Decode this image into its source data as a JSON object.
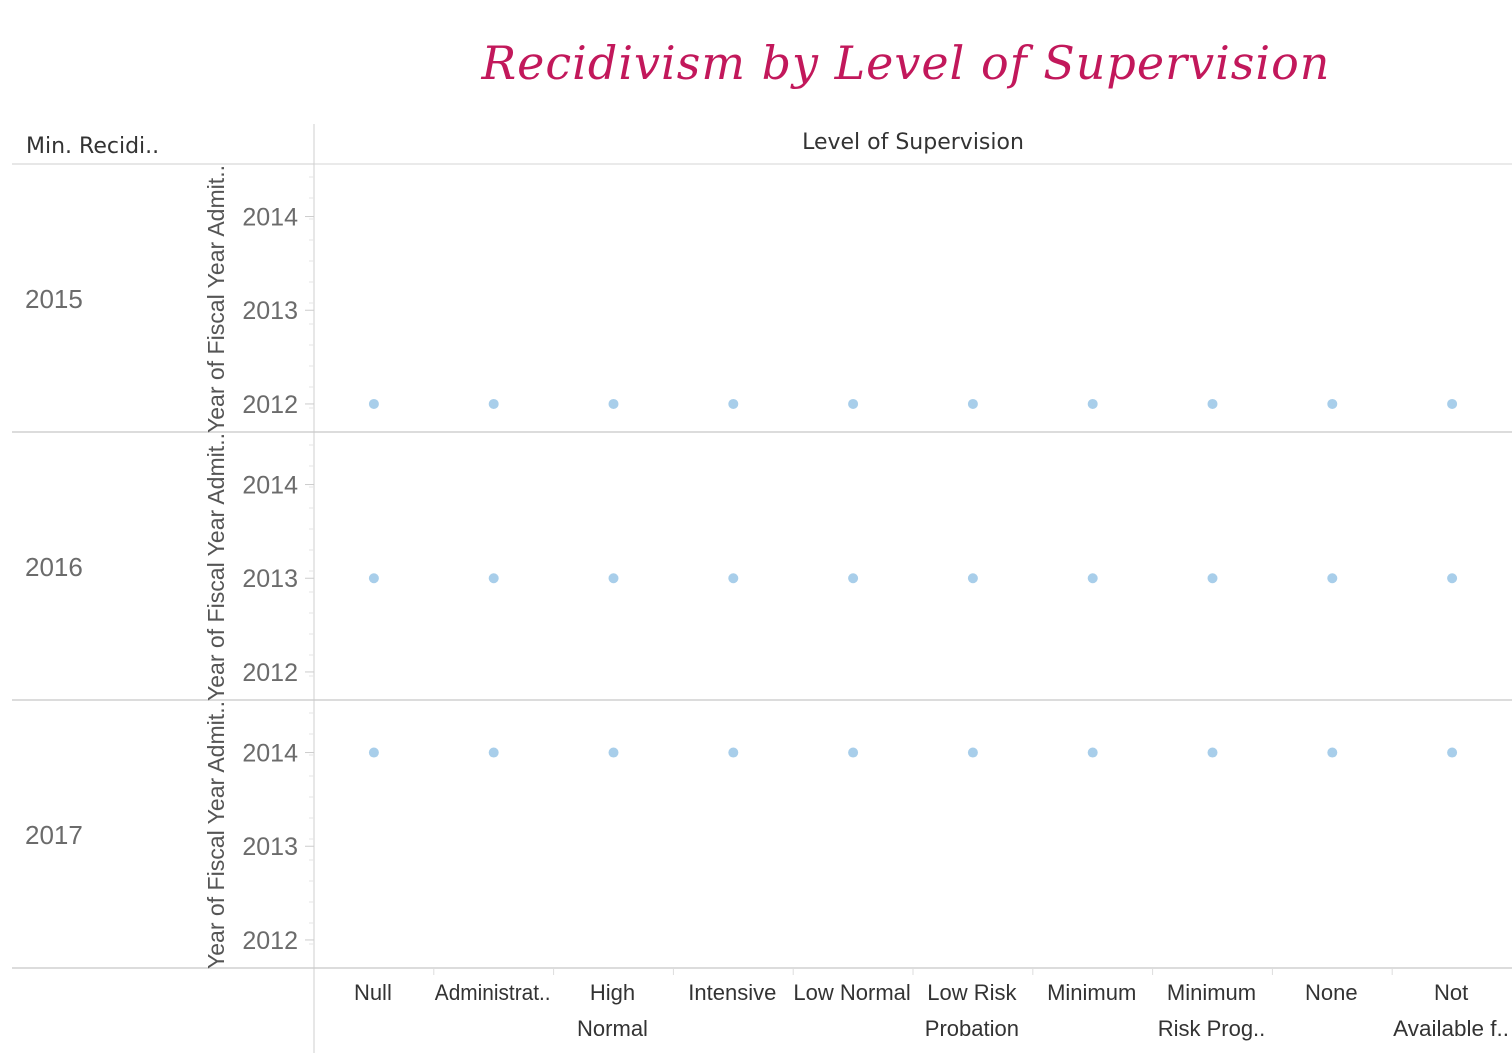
{
  "title": "Recidivism by Level of Supervision",
  "row_header": "Min. Recidi..",
  "column_header": "Level of Supervision",
  "colors": {
    "title": "#c2185b",
    "mark": "#9ec9e8"
  },
  "chart_data": {
    "type": "scatter",
    "y_axis_label": "Year of Fiscal Year Admit..",
    "y_ticks": [
      "2012",
      "2013",
      "2014"
    ],
    "categories": [
      "Null",
      "Administrat..",
      "High Normal",
      "Intensive",
      "Low Normal",
      "Low Risk Probation",
      "Minimum",
      "Minimum Risk Prog..",
      "None",
      "Not Available f.."
    ],
    "category_lines": [
      [
        "Null"
      ],
      [
        "Administrat.."
      ],
      [
        "High",
        "Normal"
      ],
      [
        "Intensive"
      ],
      [
        "Low Normal"
      ],
      [
        "Low Risk",
        "Probation"
      ],
      [
        "Minimum"
      ],
      [
        "Minimum",
        "Risk Prog.."
      ],
      [
        "None"
      ],
      [
        "Not",
        "Available f.."
      ]
    ],
    "panes": [
      {
        "label": "2015",
        "values": [
          2012,
          2012,
          2012,
          2012,
          2012,
          2012,
          2012,
          2012,
          2012,
          2012
        ]
      },
      {
        "label": "2016",
        "values": [
          2013,
          2013,
          2013,
          2013,
          2013,
          2013,
          2013,
          2013,
          2013,
          2013
        ]
      },
      {
        "label": "2017",
        "values": [
          2014,
          2014,
          2014,
          2014,
          2014,
          2014,
          2014,
          2014,
          2014,
          2014
        ]
      }
    ]
  }
}
